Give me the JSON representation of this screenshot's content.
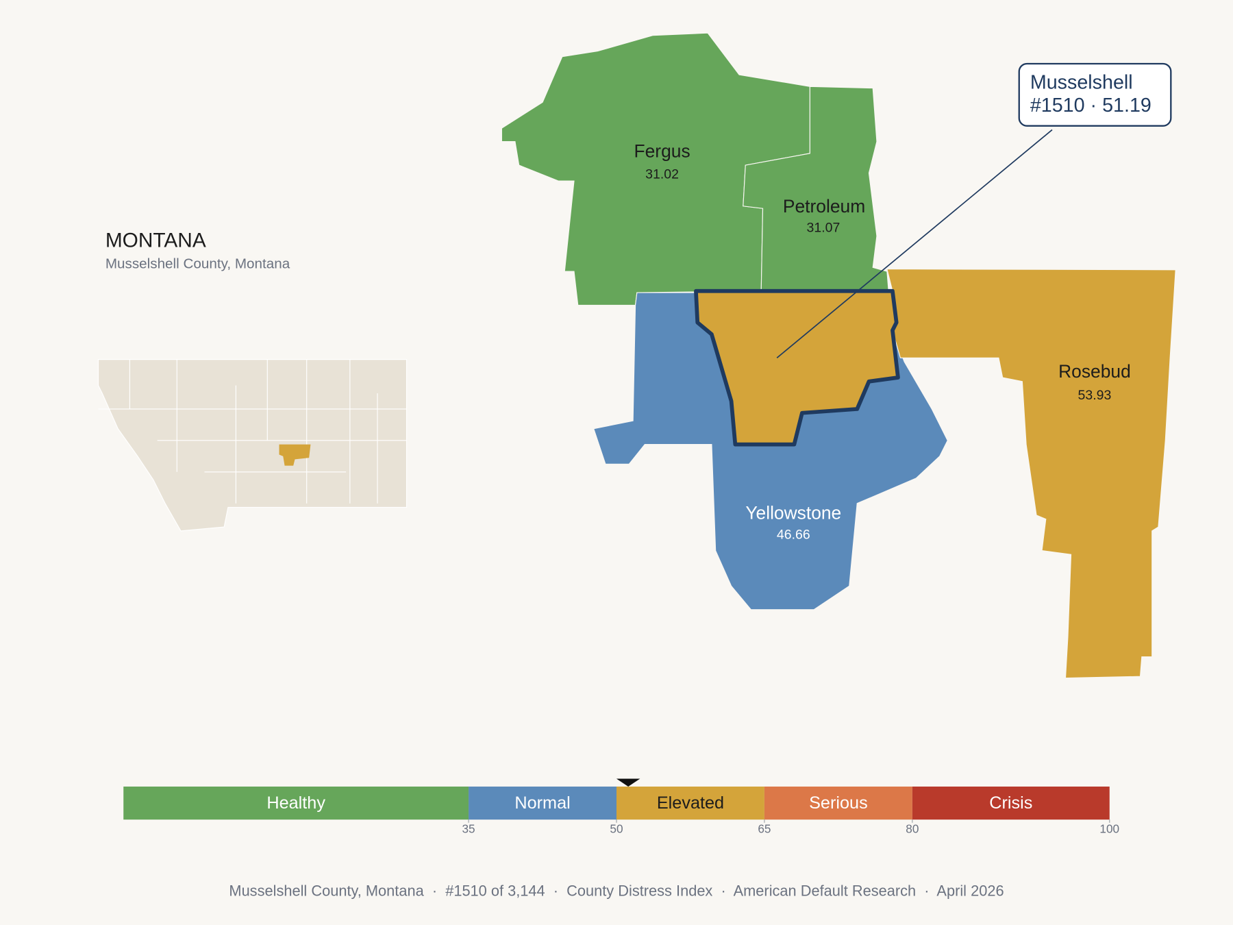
{
  "title": "MONTANA",
  "subtitle": "Musselshell County, Montana",
  "counties": [
    {
      "name": "Fergus",
      "value": 31.02,
      "color": "#66a65a",
      "label_color": "#1c1c1c"
    },
    {
      "name": "Petroleum",
      "value": 31.07,
      "color": "#66a65a",
      "label_color": "#1c1c1c"
    },
    {
      "name": "Yellowstone",
      "value": 46.66,
      "color": "#5b8aba",
      "label_color": "#ffffff"
    },
    {
      "name": "Rosebud",
      "value": 53.93,
      "color": "#d4a43a",
      "label_color": "#1c1c1c"
    }
  ],
  "focus": {
    "color": "#d4a43a",
    "outline": "#1f3a5f"
  },
  "callout": {
    "title": "Musselshell",
    "label": "#1510 · 51.19",
    "value": 51.19
  },
  "legend": {
    "scale_lim": [
      0,
      100
    ],
    "ticks": [
      35,
      50,
      65,
      80,
      100
    ],
    "bands": [
      {
        "name": "Healthy",
        "color": "#66a65a",
        "label_color": "#ffffff"
      },
      {
        "name": "Normal",
        "color": "#5b8aba",
        "label_color": "#ffffff"
      },
      {
        "name": "Elevated",
        "color": "#d4a43a",
        "label_color": "#1c1c1c"
      },
      {
        "name": "Serious",
        "color": "#dc7848",
        "label_color": "#ffffff"
      },
      {
        "name": "Crisis",
        "color": "#b93a2b",
        "label_color": "#ffffff"
      }
    ]
  },
  "footer": "Musselshell County, Montana  ·  #1510 of 3,144  ·  County Distress Index  ·  American Default Research  ·  April 2026"
}
